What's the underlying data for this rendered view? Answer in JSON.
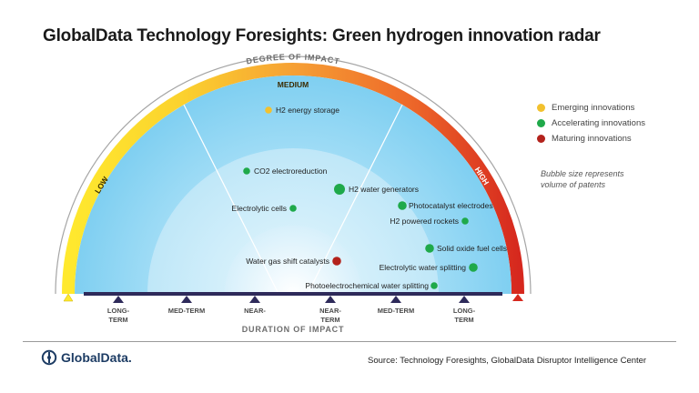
{
  "title": "GlobalData Technology Foresights: Green hydrogen innovation radar",
  "impact_axis": {
    "title": "DEGREE OF IMPACT",
    "low": "LOW",
    "medium": "MEDIUM",
    "high": "HIGH"
  },
  "duration_axis": {
    "title": "DURATION OF IMPACT",
    "ticks": [
      {
        "line1": "LONG-",
        "line2": "TERM"
      },
      {
        "line1": "MED-TERM",
        "line2": ""
      },
      {
        "line1": "NEAR-",
        "line2": ""
      },
      {
        "line1": "NEAR-",
        "line2": "TERM"
      },
      {
        "line1": "MED-TERM",
        "line2": ""
      },
      {
        "line1": "LONG-",
        "line2": "TERM"
      }
    ]
  },
  "categories": {
    "emerging": {
      "label": "Emerging innovations",
      "color": "#F2C12E"
    },
    "accelerating": {
      "label": "Accelerating innovations",
      "color": "#1FA94A"
    },
    "maturing": {
      "label": "Maturing innovations",
      "color": "#B3221C"
    }
  },
  "bubble_note": "Bubble size represents volume of patents",
  "innovations": [
    {
      "label": "H2 energy storage",
      "category": "emerging",
      "size": "small"
    },
    {
      "label": "CO2 electroreduction",
      "category": "accelerating",
      "size": "small"
    },
    {
      "label": "H2 water generators",
      "category": "accelerating",
      "size": "large"
    },
    {
      "label": "Electrolytic cells",
      "category": "accelerating",
      "size": "small"
    },
    {
      "label": "Photocatalyst electrodes",
      "category": "accelerating",
      "size": "medium"
    },
    {
      "label": "H2 powered rockets",
      "category": "accelerating",
      "size": "small"
    },
    {
      "label": "Solid oxide fuel cells",
      "category": "accelerating",
      "size": "medium"
    },
    {
      "label": "Water gas shift catalysts",
      "category": "maturing",
      "size": "medium"
    },
    {
      "label": "Electrolytic water splitting",
      "category": "accelerating",
      "size": "medium"
    },
    {
      "label": "Photoelectrochemical water splitting",
      "category": "accelerating",
      "size": "small"
    }
  ],
  "footer": {
    "logo_text": "GlobalData.",
    "source": "Source: Technology Foresights, GlobalData Disruptor Intelligence Center"
  }
}
